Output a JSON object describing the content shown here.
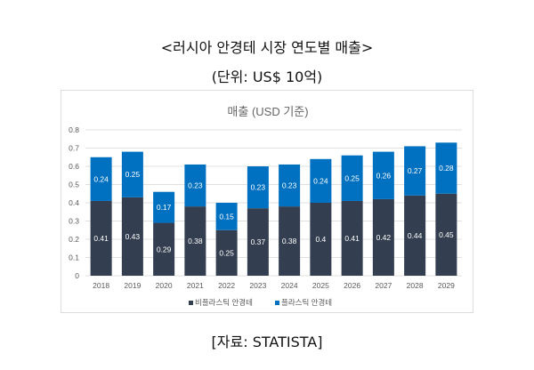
{
  "title": "<러시아 안경테 시장 연도별 매출>",
  "subtitle": "(단위: US$ 10억)",
  "source": "[자료:  STATISTA]",
  "chart_data": {
    "type": "bar",
    "stacked": true,
    "title": "매출 (USD 기준)",
    "categories": [
      "2018",
      "2019",
      "2020",
      "2021",
      "2022",
      "2023",
      "2024",
      "2025",
      "2026",
      "2027",
      "2028",
      "2029"
    ],
    "series": [
      {
        "name": "비플라스틱 안경테",
        "color": "#333f50",
        "values": [
          0.41,
          0.43,
          0.29,
          0.38,
          0.25,
          0.37,
          0.38,
          0.4,
          0.41,
          0.42,
          0.44,
          0.45
        ]
      },
      {
        "name": "플라스틱 안경테",
        "color": "#0070c0",
        "values": [
          0.24,
          0.25,
          0.17,
          0.23,
          0.15,
          0.23,
          0.23,
          0.24,
          0.25,
          0.26,
          0.27,
          0.28
        ]
      }
    ],
    "ylim": [
      0,
      0.8
    ],
    "yticks": [
      "0",
      "0.1",
      "0.2",
      "0.3",
      "0.4",
      "0.5",
      "0.6",
      "0.7",
      "0.8"
    ],
    "grid": true,
    "legend": "bottom"
  }
}
